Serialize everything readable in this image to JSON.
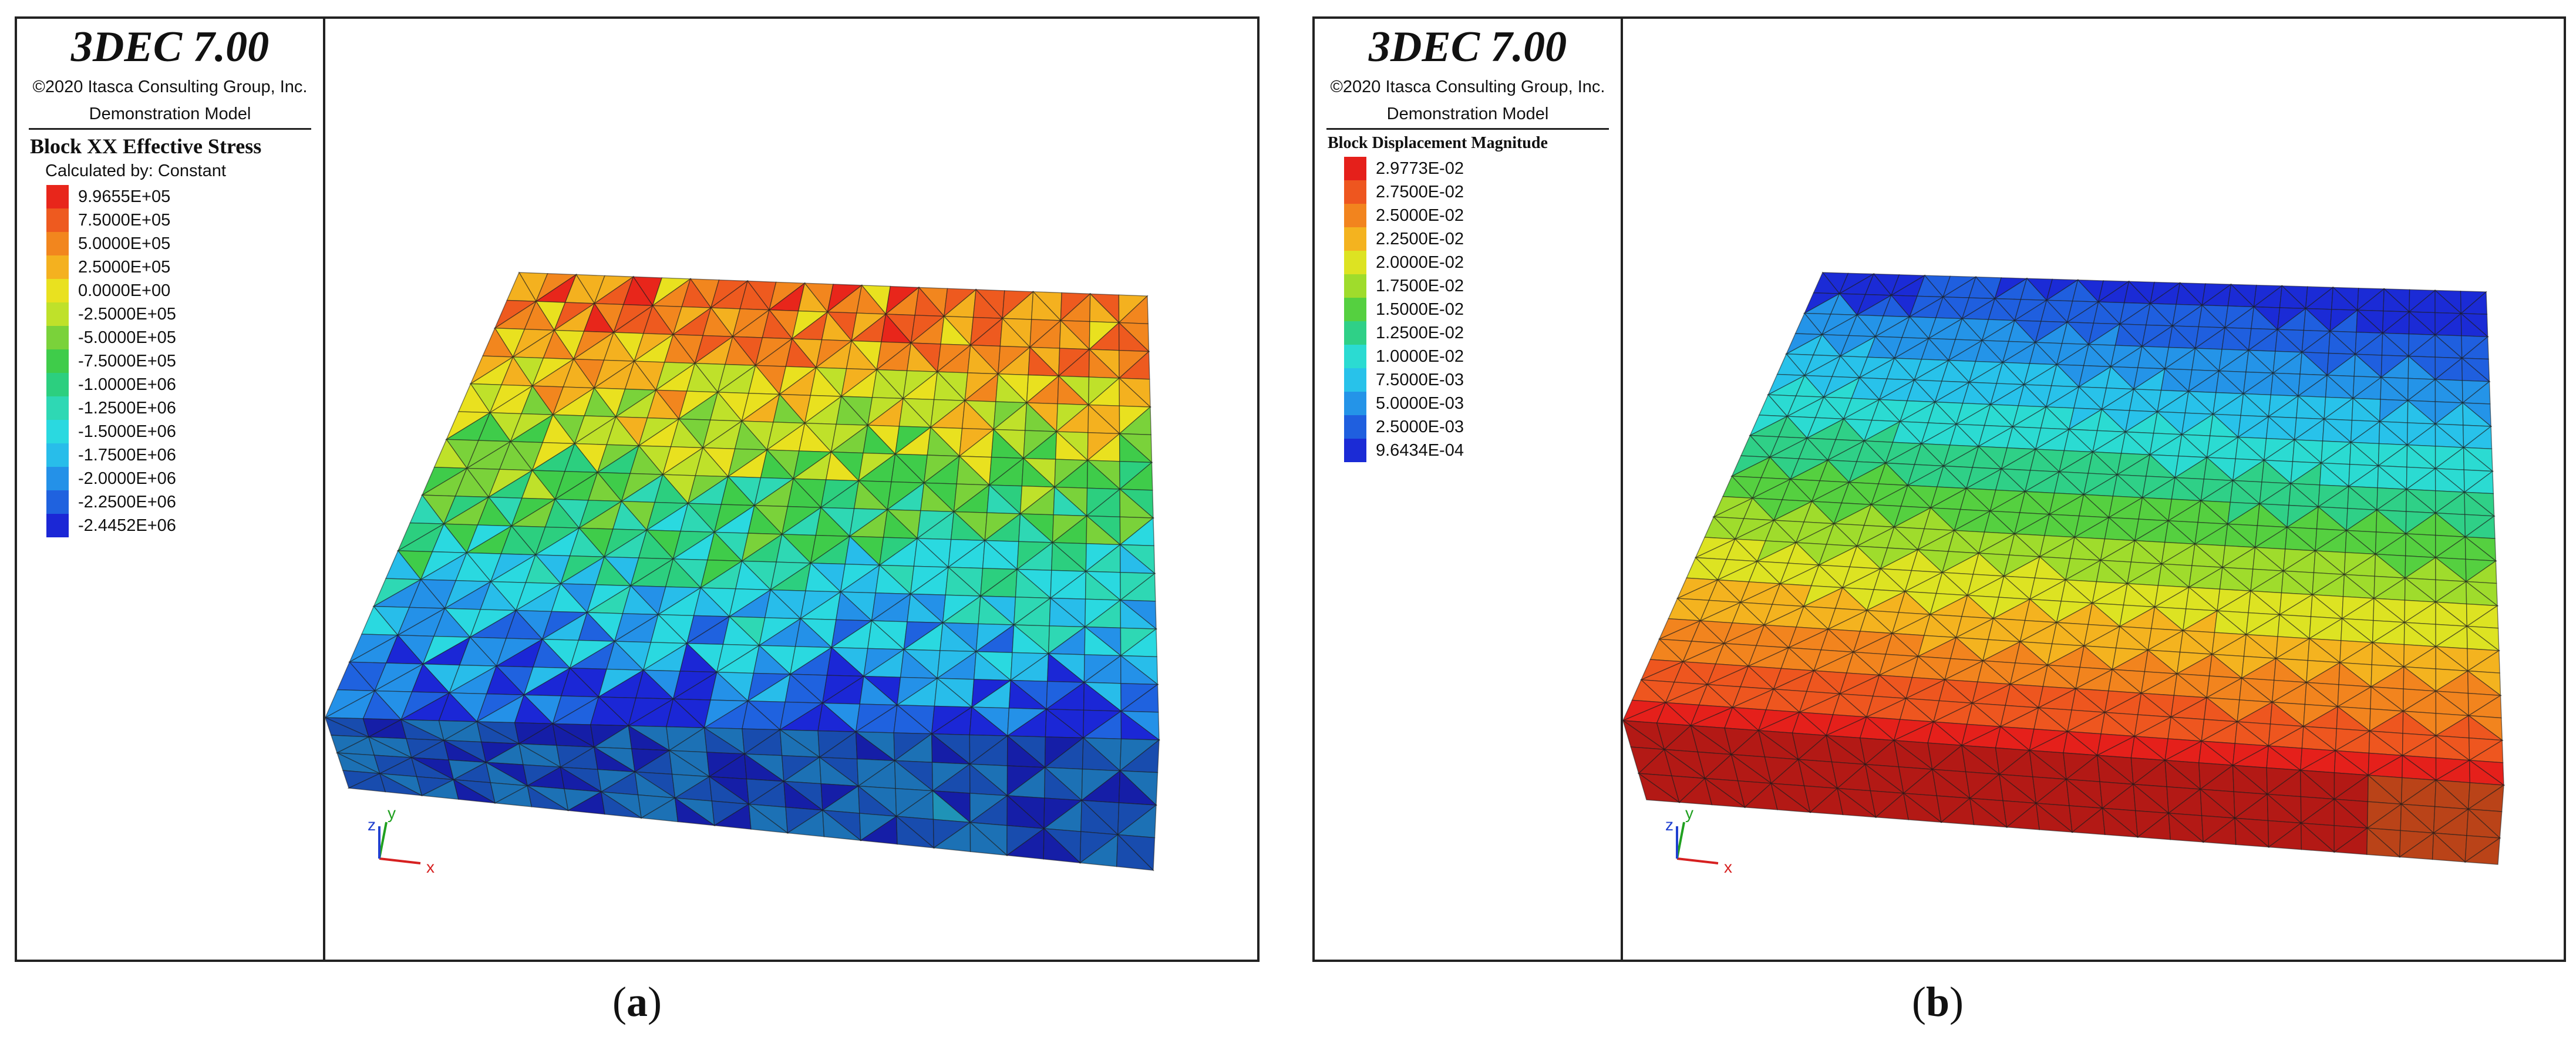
{
  "panels": [
    {
      "product": "3DEC 7.00",
      "copyright": "©2020 Itasca Consulting Group, Inc.",
      "model": "Demonstration Model",
      "legend_title": "Block XX Effective Stress",
      "legend_subtitle": "Calculated by: Constant",
      "legend_items": [
        {
          "label": "9.9655E+05",
          "color": "#e8261b"
        },
        {
          "label": "7.5000E+05",
          "color": "#ee5a1f"
        },
        {
          "label": "5.0000E+05",
          "color": "#f2861e"
        },
        {
          "label": "2.5000E+05",
          "color": "#f4b11f"
        },
        {
          "label": "0.0000E+00",
          "color": "#e9e11f"
        },
        {
          "label": "-2.5000E+05",
          "color": "#bfe12a"
        },
        {
          "label": "-5.0000E+05",
          "color": "#7ad23a"
        },
        {
          "label": "-7.5000E+05",
          "color": "#3fcc4a"
        },
        {
          "label": "-1.0000E+06",
          "color": "#2ccf7f"
        },
        {
          "label": "-1.2500E+06",
          "color": "#2ed8b4"
        },
        {
          "label": "-1.5000E+06",
          "color": "#2ad9e0"
        },
        {
          "label": "-1.7500E+06",
          "color": "#28bdea"
        },
        {
          "label": "-2.0000E+06",
          "color": "#2491e8"
        },
        {
          "label": "-2.2500E+06",
          "color": "#1f62df"
        },
        {
          "label": "-2.4452E+06",
          "color": "#1b27d6"
        }
      ],
      "axes": {
        "x": "x",
        "y": "y",
        "z": "z"
      },
      "caption_letter": "a"
    },
    {
      "product": "3DEC 7.00",
      "copyright": "©2020 Itasca Consulting Group, Inc.",
      "model": "Demonstration Model",
      "legend_title": "Block Displacement Magnitude",
      "legend_items": [
        {
          "label": "2.9773E-02",
          "color": "#e5201b"
        },
        {
          "label": "2.7500E-02",
          "color": "#ee561f"
        },
        {
          "label": "2.5000E-02",
          "color": "#f2841e"
        },
        {
          "label": "2.2500E-02",
          "color": "#f4b31f"
        },
        {
          "label": "2.0000E-02",
          "color": "#dde322"
        },
        {
          "label": "1.7500E-02",
          "color": "#9fdc2c"
        },
        {
          "label": "1.5000E-02",
          "color": "#55d040"
        },
        {
          "label": "1.2500E-02",
          "color": "#2fd087"
        },
        {
          "label": "1.0000E-02",
          "color": "#2bdbd2"
        },
        {
          "label": "7.5000E-03",
          "color": "#28c2ea"
        },
        {
          "label": "5.0000E-03",
          "color": "#2494e8"
        },
        {
          "label": "2.5000E-03",
          "color": "#1f5fdf"
        },
        {
          "label": "9.6434E-04",
          "color": "#1b2bd6"
        }
      ],
      "axes": {
        "x": "x",
        "y": "y",
        "z": "z"
      },
      "caption_letter": "b"
    }
  ]
}
